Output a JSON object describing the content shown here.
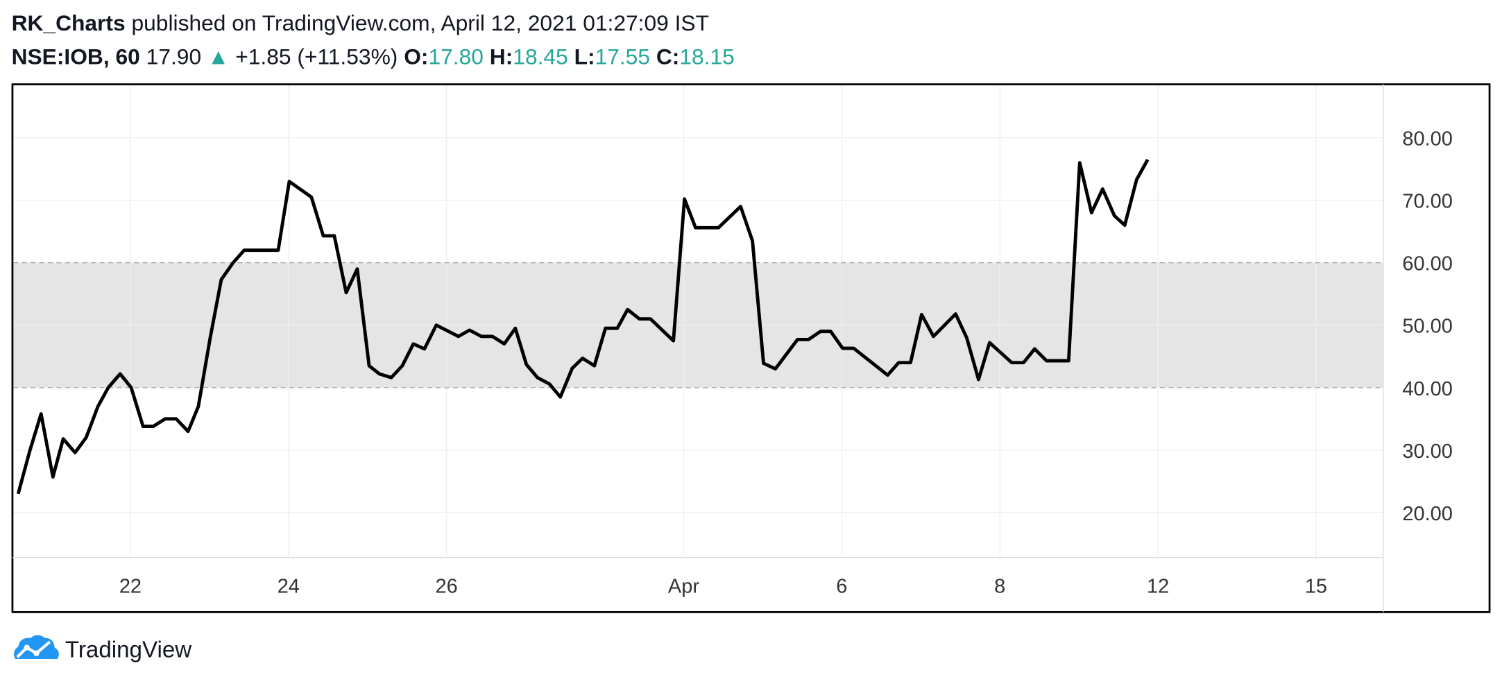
{
  "header": {
    "author": "RK_Charts",
    "published": "published on TradingView.com, April 12, 2021 01:27:09 IST",
    "symbol": "NSE:IOB, 60",
    "price": "17.90",
    "change": "+1.85 (+11.53%)",
    "o_label": "O:",
    "o": "17.80",
    "h_label": "H:",
    "h": "18.45",
    "l_label": "L:",
    "l": "17.55",
    "c_label": "C:",
    "c": "18.15"
  },
  "footer": {
    "brand": "TradingView"
  },
  "chart_data": {
    "type": "line",
    "color": "#000000",
    "grid": true,
    "band": [
      40,
      60
    ],
    "band_color": "#e5e5e5",
    "xlim": [
      20.52,
      37.85
    ],
    "ylim": [
      12.8,
      88.4
    ],
    "xticks": [
      22,
      24,
      26,
      {
        "value": 29,
        "label": "Apr"
      },
      {
        "value": 31,
        "label": "6"
      },
      {
        "value": 33,
        "label": "8"
      },
      {
        "value": 35,
        "label": "12"
      },
      {
        "value": 37,
        "label": "15"
      }
    ],
    "yticks": [
      {
        "value": 20,
        "label": "20.00"
      },
      {
        "value": 30,
        "label": "30.00"
      },
      {
        "value": 40,
        "label": "40.00"
      },
      {
        "value": 50,
        "label": "50.00"
      },
      {
        "value": 60,
        "label": "60.00"
      },
      {
        "value": 70,
        "label": "70.00"
      },
      {
        "value": 80,
        "label": "80.00"
      }
    ],
    "x": [
      20.58,
      20.73,
      20.87,
      21.02,
      21.15,
      21.3,
      21.44,
      21.59,
      21.72,
      21.87,
      22.01,
      22.16,
      22.29,
      22.44,
      22.58,
      22.73,
      22.86,
      23.01,
      23.15,
      23.3,
      23.44,
      23.87,
      24.01,
      24.29,
      24.44,
      24.58,
      24.73,
      24.87,
      25.02,
      25.15,
      25.3,
      25.44,
      25.58,
      25.72,
      25.87,
      26.15,
      26.29,
      26.44,
      26.58,
      26.73,
      26.87,
      27.01,
      27.15,
      27.3,
      27.44,
      27.59,
      27.72,
      27.87,
      28.01,
      28.16,
      28.29,
      28.44,
      28.58,
      28.87,
      29.01,
      29.15,
      29.44,
      29.72,
      29.87,
      30.01,
      30.16,
      30.44,
      30.58,
      30.73,
      30.86,
      31.01,
      31.15,
      31.58,
      31.72,
      31.87,
      32.01,
      32.16,
      32.44,
      32.58,
      32.73,
      32.87,
      33.15,
      33.3,
      33.44,
      33.59,
      33.87,
      34.01,
      34.16,
      34.3,
      34.45,
      34.58,
      34.73,
      34.87
    ],
    "values": [
      23,
      30,
      35.8,
      25.7,
      31.8,
      29.6,
      32,
      37,
      40,
      42.2,
      40,
      33.8,
      33.8,
      35,
      35,
      33,
      37,
      48,
      57.3,
      60,
      62,
      62,
      73,
      70.5,
      64.3,
      64.3,
      55.2,
      59,
      43.5,
      42.2,
      41.6,
      43.5,
      47,
      46.2,
      50,
      48.2,
      49.2,
      48.2,
      48.2,
      47,
      49.5,
      43.7,
      41.6,
      40.6,
      38.5,
      43.1,
      44.7,
      43.5,
      49.5,
      49.5,
      52.5,
      51,
      51,
      47.5,
      70.2,
      65.6,
      65.6,
      69,
      63.5,
      43.9,
      43,
      47.7,
      47.7,
      49,
      49,
      46.3,
      46.3,
      42,
      44,
      44,
      51.7,
      48.2,
      51.8,
      48,
      41.3,
      47.2,
      44,
      44,
      46.2,
      44.3,
      44.3,
      76,
      68,
      71.8,
      67.5,
      66,
      73.3,
      76.5
    ]
  }
}
